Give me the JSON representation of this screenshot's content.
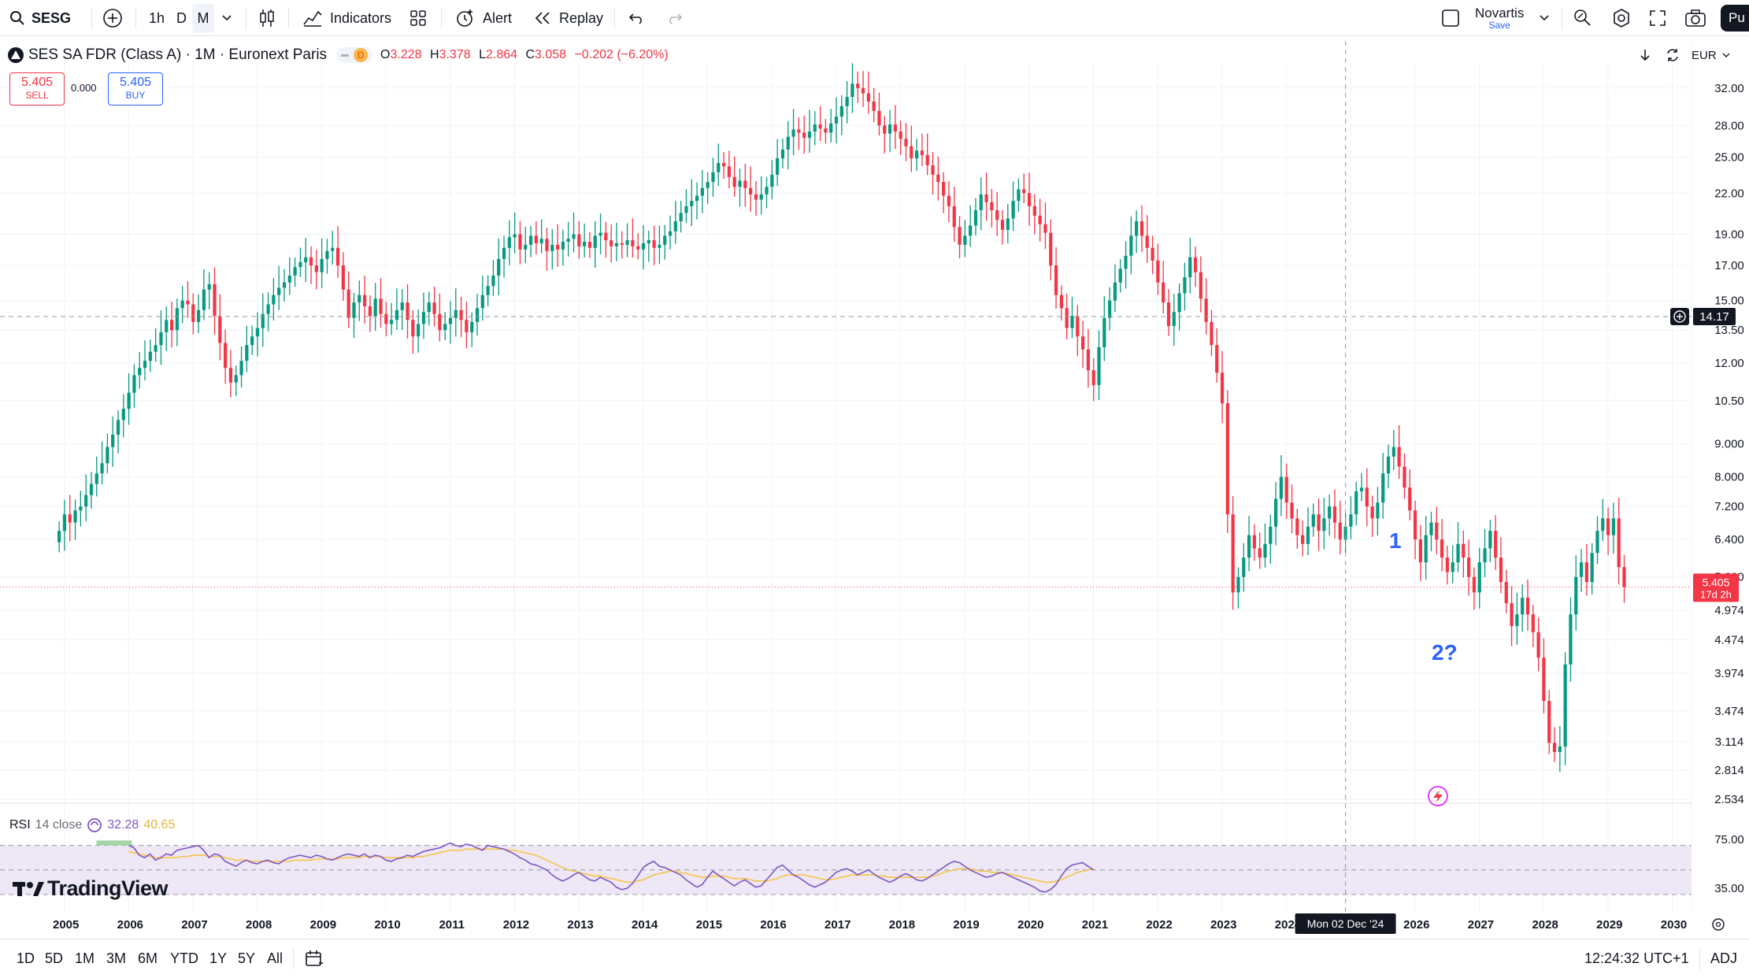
{
  "toolbar": {
    "symbol": "SESG",
    "intervals": [
      "1h",
      "D",
      "M"
    ],
    "indicators_label": "Indicators",
    "alert_label": "Alert",
    "replay_label": "Replay",
    "layout_name": "Novartis",
    "layout_status": "Save",
    "publish_label": "Pu"
  },
  "legend": {
    "title": "SES SA FDR (Class A) · 1M · Euronext Paris",
    "badge": "D",
    "o_label": "O",
    "o": "3.228",
    "h_label": "H",
    "h": "3.378",
    "l_label": "L",
    "l": "2.864",
    "c_label": "C",
    "c": "3.058",
    "change": "−0.202 (−6.20%)"
  },
  "trade": {
    "sell_price": "5.405",
    "sell_label": "SELL",
    "spread": "0.000",
    "buy_price": "5.405",
    "buy_label": "BUY"
  },
  "chart_controls": {
    "currency": "EUR"
  },
  "price_axis_ticks": [
    "32.00",
    "28.00",
    "25.00",
    "22.00",
    "19.00",
    "17.00",
    "15.00",
    "13.50",
    "12.00",
    "10.50",
    "9.000",
    "8.000",
    "7.200",
    "6.400",
    "5.600",
    "4.974",
    "4.474",
    "3.974",
    "3.474",
    "3.114",
    "2.814",
    "2.534"
  ],
  "crosshair": {
    "price": "14.17",
    "time": "Mon 02 Dec '24"
  },
  "last_price": {
    "value": "5.405",
    "countdown": "17d 2h"
  },
  "annotations": {
    "wave1": "1",
    "wave2": "2?"
  },
  "rsi": {
    "label": "RSI",
    "params": "14 close",
    "value": "32.28",
    "ma_value": "40.65",
    "ticks": [
      "75.00",
      "35.00"
    ]
  },
  "time_axis": [
    "2005",
    "2006",
    "2007",
    "2008",
    "2009",
    "2010",
    "2011",
    "2012",
    "2013",
    "2014",
    "2015",
    "2016",
    "2017",
    "2018",
    "2019",
    "2020",
    "2021",
    "2022",
    "2023",
    "2024",
    "2026",
    "2027",
    "2028",
    "2029",
    "2030"
  ],
  "bottom": {
    "ranges": [
      "1D",
      "5D",
      "1M",
      "3M",
      "6M",
      "YTD",
      "1Y",
      "5Y",
      "All"
    ],
    "clock": "12:24:32 UTC+1",
    "adj": "ADJ"
  },
  "branding": {
    "logo_text": "TradingView"
  },
  "colors": {
    "up": "#089981",
    "down": "#f23645",
    "rsi_line": "#7e57c2",
    "rsi_ma": "#f7c548",
    "rsi_band": "#ede7f6",
    "annotation": "#2962ff",
    "last_price_bg": "#f23645"
  },
  "chart_data": {
    "type": "candlestick",
    "interval": "1M",
    "scale": "log",
    "ylim": [
      2.5,
      34.5
    ],
    "xlim": [
      2004.0,
      2030.3
    ],
    "years": [
      2005,
      2006,
      2007,
      2008,
      2009,
      2010,
      2011,
      2012,
      2013,
      2014,
      2015,
      2016,
      2017,
      2018,
      2019,
      2020,
      2021,
      2022,
      2023,
      2024,
      2025,
      2026,
      2027,
      2028,
      2029,
      2030
    ],
    "first_candle_time": 2004.92,
    "closes": [
      6.6,
      7.0,
      6.8,
      7.1,
      7.2,
      7.5,
      7.8,
      8.1,
      8.4,
      8.9,
      9.3,
      9.8,
      10.2,
      10.8,
      11.5,
      11.8,
      12.1,
      12.5,
      12.8,
      13.4,
      14.0,
      13.5,
      14.6,
      15.0,
      14.8,
      13.9,
      14.5,
      15.6,
      15.9,
      14.2,
      12.9,
      11.8,
      11.2,
      11.5,
      12.1,
      12.8,
      13.2,
      13.6,
      14.3,
      14.8,
      15.3,
      15.7,
      16.0,
      16.4,
      16.9,
      17.2,
      17.5,
      17.0,
      16.6,
      17.4,
      17.9,
      18.1,
      17.0,
      15.6,
      14.1,
      14.9,
      15.3,
      14.7,
      14.2,
      15.1,
      14.3,
      13.8,
      14.0,
      14.5,
      14.9,
      14.0,
      13.2,
      13.8,
      14.4,
      14.9,
      14.3,
      13.5,
      13.8,
      14.1,
      14.5,
      14.0,
      13.4,
      13.9,
      14.6,
      15.3,
      15.8,
      16.4,
      17.4,
      18.1,
      18.8,
      19.0,
      18.0,
      18.3,
      18.9,
      18.4,
      18.7,
      17.9,
      18.3,
      18.0,
      18.5,
      18.7,
      19.0,
      18.2,
      18.5,
      18.1,
      18.9,
      19.1,
      18.6,
      18.2,
      18.4,
      18.3,
      18.6,
      18.2,
      18.0,
      18.4,
      18.6,
      18.1,
      18.3,
      18.9,
      19.2,
      19.9,
      20.5,
      21.0,
      21.4,
      21.8,
      22.4,
      22.9,
      23.7,
      24.5,
      24.2,
      23.3,
      22.5,
      23.0,
      22.4,
      21.9,
      21.5,
      21.9,
      22.5,
      23.5,
      24.9,
      25.7,
      26.9,
      27.6,
      27.3,
      26.8,
      27.4,
      28.1,
      27.7,
      27.3,
      28.2,
      28.9,
      30.0,
      31.0,
      32.5,
      32.0,
      31.4,
      30.5,
      29.5,
      28.0,
      27.2,
      28.1,
      27.4,
      26.7,
      26.0,
      24.9,
      25.6,
      25.2,
      24.3,
      23.5,
      22.9,
      21.8,
      21.0,
      19.5,
      18.3,
      18.9,
      19.6,
      20.7,
      21.9,
      21.3,
      20.7,
      20.0,
      19.3,
      20.1,
      21.4,
      22.3,
      22.0,
      21.0,
      20.3,
      19.7,
      19.1,
      17.0,
      15.3,
      14.6,
      13.6,
      14.2,
      13.2,
      12.6,
      11.7,
      11.1,
      12.7,
      14.1,
      15.0,
      16.0,
      16.8,
      17.6,
      18.9,
      19.9,
      18.9,
      18.1,
      17.3,
      16.0,
      14.9,
      13.7,
      14.4,
      15.4,
      16.3,
      17.5,
      16.6,
      15.1,
      13.9,
      12.8,
      11.6,
      10.4,
      7.0,
      5.3,
      5.6,
      6.0,
      6.5,
      6.2,
      6.0,
      6.3,
      6.7,
      7.4,
      8.0,
      7.3,
      6.9,
      6.5,
      6.3,
      6.7,
      7.0,
      6.6,
      6.9,
      7.2,
      6.8,
      6.4,
      6.7,
      7.0,
      7.6,
      7.7,
      7.2,
      6.9,
      7.3,
      8.1,
      8.6,
      8.9,
      8.3,
      7.7,
      7.1,
      6.4,
      5.9,
      6.5,
      6.8,
      6.4,
      6.0,
      5.7,
      5.9,
      6.3,
      6.0,
      5.6,
      5.3,
      5.9,
      6.2,
      6.6,
      6.0,
      5.5,
      5.1,
      4.7,
      4.9,
      5.2,
      4.9,
      4.6,
      4.2,
      3.6,
      3.1,
      3.0,
      3.06,
      4.1,
      4.9,
      5.6,
      5.9,
      5.5,
      6.1,
      6.6,
      6.9,
      6.5,
      6.9,
      5.8,
      5.405
    ],
    "last_close": 5.405,
    "rsi": {
      "period": 14,
      "source": "close",
      "ylim": [
        30,
        80
      ],
      "band": [
        70,
        30
      ],
      "midline": 50,
      "start_time": 2006.0,
      "values": [
        70,
        68,
        62,
        60,
        63,
        58,
        60,
        63,
        62,
        66,
        67,
        68,
        69,
        70,
        66,
        60,
        63,
        62,
        57,
        55,
        53,
        56,
        58,
        56,
        55,
        57,
        58,
        56,
        55,
        58,
        60,
        61,
        62,
        61,
        60,
        62,
        61,
        59,
        58,
        60,
        62,
        63,
        62,
        61,
        63,
        60,
        62,
        61,
        58,
        57,
        59,
        60,
        62,
        61,
        63,
        65,
        66,
        67,
        68,
        70,
        72,
        70,
        69,
        71,
        70,
        68,
        66,
        70,
        69,
        68,
        67,
        65,
        63,
        60,
        58,
        55,
        54,
        52,
        50,
        46,
        43,
        41,
        43,
        46,
        48,
        45,
        42,
        41,
        44,
        42,
        40,
        36,
        34,
        35,
        39,
        45,
        52,
        55,
        57,
        53,
        52,
        50,
        48,
        46,
        42,
        39,
        36,
        38,
        44,
        49,
        46,
        43,
        40,
        37,
        40,
        42,
        39,
        36,
        37,
        42,
        47,
        52,
        54,
        50,
        46,
        44,
        41,
        38,
        36,
        38,
        40,
        44,
        48,
        50,
        51,
        49,
        46,
        48,
        50,
        47,
        44,
        42,
        40,
        42,
        45,
        47,
        45,
        42,
        41,
        43,
        46,
        49,
        52,
        55,
        57,
        56,
        53,
        50,
        48,
        46,
        44,
        45,
        47,
        48,
        46,
        44,
        42,
        40,
        38,
        36,
        33,
        32,
        34,
        38,
        45,
        51,
        54,
        55,
        56,
        53,
        50
      ],
      "ma_values": [
        65,
        64,
        63,
        62,
        61,
        60,
        60,
        60,
        60,
        60,
        61,
        61,
        62,
        62,
        62,
        61,
        61,
        61,
        60,
        59,
        58,
        58,
        58,
        57,
        57,
        57,
        57,
        57,
        57,
        57,
        57,
        58,
        58,
        58,
        58,
        59,
        59,
        59,
        59,
        59,
        60,
        60,
        60,
        60,
        61,
        61,
        61,
        61,
        60,
        60,
        60,
        60,
        60,
        60,
        61,
        61,
        62,
        63,
        64,
        65,
        66,
        66,
        66,
        67,
        67,
        67,
        67,
        67,
        67,
        67,
        67,
        66,
        66,
        65,
        64,
        63,
        62,
        60,
        58,
        56,
        54,
        52,
        50,
        49,
        48,
        47,
        46,
        45,
        45,
        44,
        43,
        42,
        41,
        40,
        40,
        41,
        42,
        44,
        46,
        47,
        48,
        49,
        49,
        48,
        47,
        46,
        45,
        44,
        44,
        45,
        45,
        45,
        44,
        43,
        43,
        43,
        42,
        41,
        41,
        41,
        42,
        43,
        45,
        46,
        46,
        46,
        46,
        45,
        44,
        43,
        42,
        42,
        43,
        44,
        45,
        46,
        46,
        46,
        46,
        46,
        45,
        45,
        44,
        44,
        44,
        44,
        44,
        44,
        44,
        44,
        45,
        46,
        48,
        49,
        50,
        51,
        51,
        51,
        50,
        49,
        49,
        48,
        48,
        48,
        47,
        46,
        45,
        44,
        43,
        42,
        41,
        40,
        40,
        41,
        42,
        44,
        46,
        48,
        49,
        50,
        51
      ]
    }
  }
}
